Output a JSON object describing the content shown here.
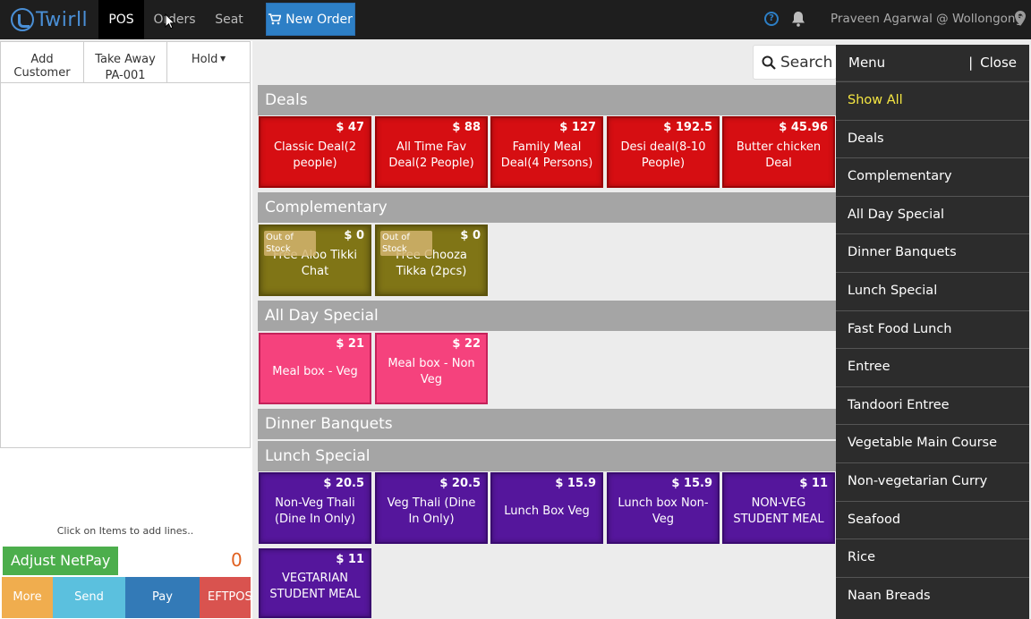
{
  "nav": {
    "logo": "Twirll",
    "pos": "POS",
    "orders": "Orders",
    "seat": "Seat",
    "new_order": "New Order",
    "user": "Praveen Agarwal @ Wollongong"
  },
  "order_panel": {
    "add_customer": "Add Customer",
    "take_away": "Take Away",
    "order_no": "PA-001",
    "hold": "Hold",
    "hint": "Click on Items to add lines..",
    "adjust": "Adjust NetPay",
    "total": "0",
    "buttons": {
      "more": "More",
      "send": "Send",
      "pay": "Pay",
      "eftpos": "EFTPOS"
    }
  },
  "search": {
    "label": "Search"
  },
  "sections": [
    {
      "name": "Deals",
      "items": [
        {
          "name": "Classic Deal(2 people)",
          "price": "$ 47"
        },
        {
          "name": "All Time Fav Deal(2 People)",
          "price": "$ 88"
        },
        {
          "name": "Family Meal Deal(4 Persons)",
          "price": "$ 127"
        },
        {
          "name": "Desi deal(8-10 People)",
          "price": "$ 192.5"
        },
        {
          "name": "Butter chicken Deal",
          "price": "$ 45.96"
        }
      ]
    },
    {
      "name": "Complementary",
      "items": [
        {
          "name": "Free Aloo Tikki Chat",
          "price": "$ 0",
          "badge": "Out of Stock"
        },
        {
          "name": "Free Chooza Tikka (2pcs)",
          "price": "$ 0",
          "badge": "Out of Stock"
        }
      ]
    },
    {
      "name": "All Day Special",
      "items": [
        {
          "name": "Meal box - Veg",
          "price": "$ 21"
        },
        {
          "name": "Meal box - Non Veg",
          "price": "$ 22"
        }
      ]
    },
    {
      "name": "Dinner Banquets",
      "items": []
    },
    {
      "name": "Lunch Special",
      "items": [
        {
          "name": "Non-Veg Thali (Dine In Only)",
          "price": "$ 20.5"
        },
        {
          "name": "Veg Thali (Dine In Only)",
          "price": "$ 20.5"
        },
        {
          "name": "Lunch Box Veg",
          "price": "$ 15.9"
        },
        {
          "name": "Lunch box Non-Veg",
          "price": "$ 15.9"
        },
        {
          "name": "NON-VEG STUDENT MEAL",
          "price": "$ 11"
        },
        {
          "name": "VEGTARIAN STUDENT MEAL",
          "price": "$ 11"
        }
      ]
    }
  ],
  "menu": {
    "title": "Menu",
    "close": "Close",
    "items": [
      "Show All",
      "Deals",
      "Complementary",
      "All Day Special",
      "Dinner Banquets",
      "Lunch Special",
      "Fast Food Lunch",
      "Entree",
      "Tandoori Entree",
      "Vegetable Main Course",
      "Non-vegetarian Curry",
      "Seafood",
      "Rice",
      "Naan Breads"
    ],
    "active": "Show All"
  },
  "colors": {
    "deals": "#d60e12",
    "complementary": "#807516",
    "all_day": "#f5427d",
    "lunch": "#55169c",
    "active_menu": "#f5e642"
  }
}
